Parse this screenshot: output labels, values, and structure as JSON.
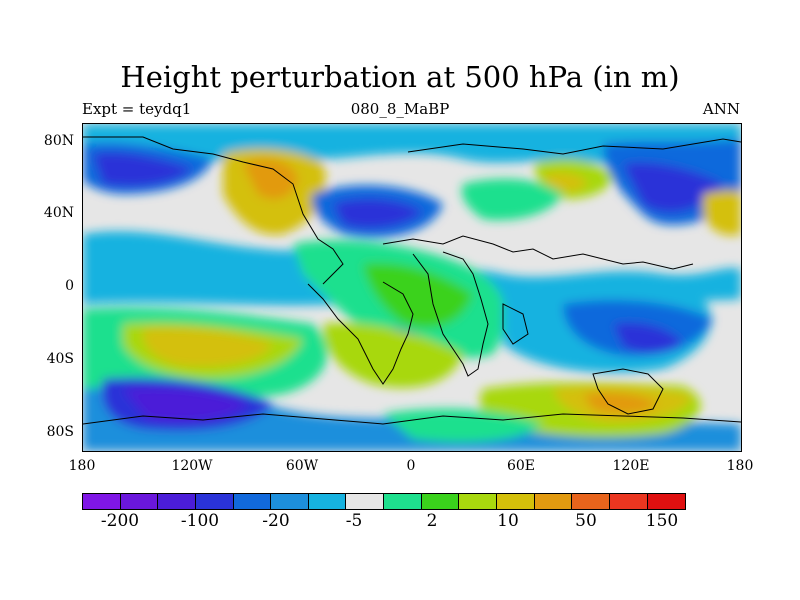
{
  "title": "Height perturbation at 500 hPa (in m)",
  "subtitle": {
    "left": "Expt = teydq1",
    "center": "080_8_MaBP",
    "right": "ANN"
  },
  "map": {
    "projection": "cylindrical equidistant",
    "lon_range": [
      -180,
      180
    ],
    "lat_range": [
      -90,
      90
    ],
    "y_ticks": [
      "80N",
      "40N",
      "0",
      "40S",
      "80S"
    ],
    "x_ticks": [
      "180",
      "120W",
      "60W",
      "0",
      "60E",
      "120E",
      "180"
    ]
  },
  "colorbar": {
    "colors": [
      "#7f16e6",
      "#6a17dc",
      "#4b1dd8",
      "#2a33d8",
      "#1169dc",
      "#1d8fdc",
      "#16b2e0",
      "#e6e6e6",
      "#1ee08e",
      "#3ad21c",
      "#a8d80e",
      "#d4c00a",
      "#e29a10",
      "#e8641c",
      "#ea3620",
      "#e01010"
    ],
    "labels": [
      "-200",
      "-100",
      "-20",
      "-5",
      "2",
      "10",
      "50",
      "150"
    ]
  }
}
